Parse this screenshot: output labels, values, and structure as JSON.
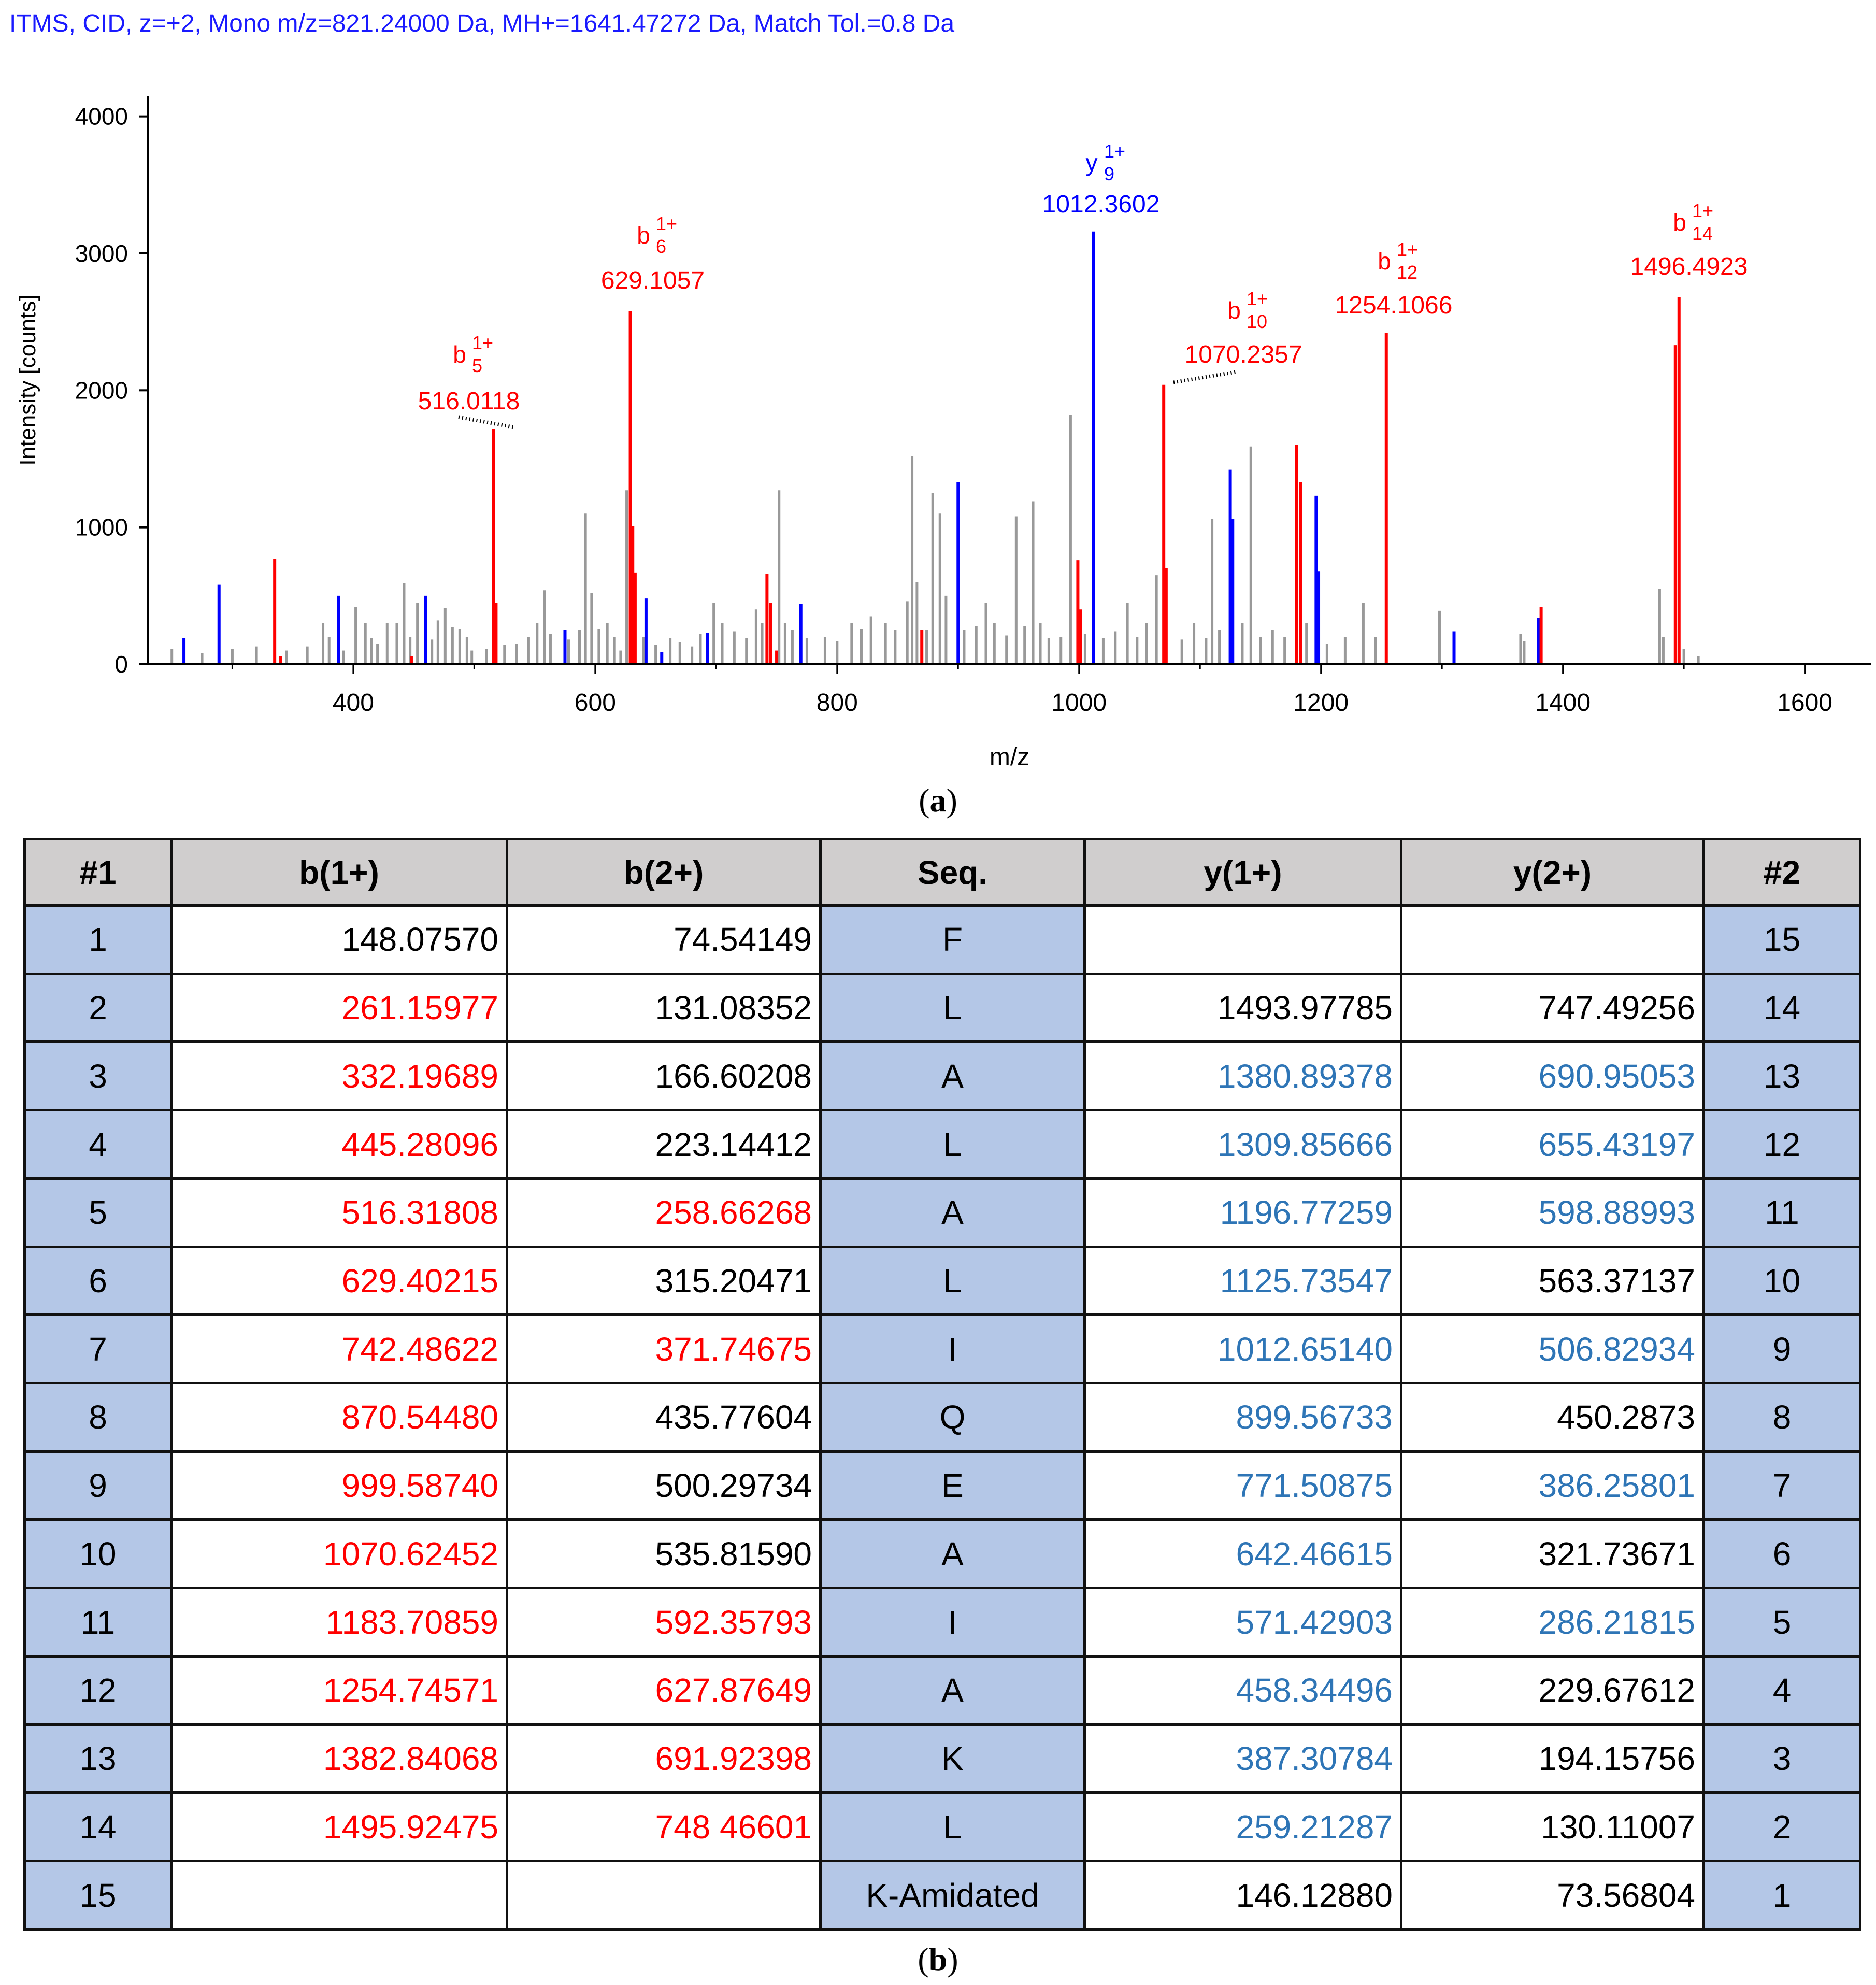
{
  "header": "ITMS, CID, z=+2, Mono m/z=821.24000 Da, MH+=1641.47272 Da, Match Tol.=0.8 Da",
  "chart_data": {
    "type": "bar",
    "title": "ITMS, CID, z=+2, Mono m/z=821.24000 Da, MH+=1641.47272 Da, Match Tol.=0.8 Da",
    "xlabel": "m/z",
    "ylabel": "Intensity [counts]",
    "xlim": [
      230,
      1655
    ],
    "ylim": [
      0,
      4150
    ],
    "xticks": [
      400,
      600,
      800,
      1000,
      1200,
      1400,
      1600
    ],
    "yticks": [
      0,
      1000,
      2000,
      3000,
      4000
    ],
    "colors": {
      "b": "#ff0000",
      "y": "#0000ff",
      "other": "#999999"
    },
    "annotations": [
      {
        "ion": "b",
        "sub": "5",
        "sup": "1+",
        "mz": "516.0118",
        "color": "#ff0000"
      },
      {
        "ion": "b",
        "sub": "6",
        "sup": "1+",
        "mz": "629.1057",
        "color": "#ff0000"
      },
      {
        "ion": "y",
        "sub": "9",
        "sup": "1+",
        "mz": "1012.3602",
        "color": "#0000ff"
      },
      {
        "ion": "b",
        "sub": "10",
        "sup": "1+",
        "mz": "1070.2357",
        "color": "#ff0000"
      },
      {
        "ion": "b",
        "sub": "12",
        "sup": "1+",
        "mz": "1254.1066",
        "color": "#ff0000"
      },
      {
        "ion": "b",
        "sub": "14",
        "sup": "1+",
        "mz": "1496.4923",
        "color": "#ff0000"
      }
    ],
    "peaks_b": [
      [
        335,
        770
      ],
      [
        340,
        60
      ],
      [
        448,
        60
      ],
      [
        516,
        1720
      ],
      [
        518,
        450
      ],
      [
        629,
        2580
      ],
      [
        631,
        1010
      ],
      [
        633,
        670
      ],
      [
        742,
        660
      ],
      [
        745,
        450
      ],
      [
        750,
        100
      ],
      [
        870,
        250
      ],
      [
        999,
        760
      ],
      [
        1001,
        400
      ],
      [
        1070,
        2040
      ],
      [
        1072,
        700
      ],
      [
        1180,
        1600
      ],
      [
        1183,
        1330
      ],
      [
        1254,
        2420
      ],
      [
        1382,
        420
      ],
      [
        1493,
        2330
      ],
      [
        1496,
        2680
      ]
    ],
    "peaks_y": [
      [
        260,
        190
      ],
      [
        289,
        580
      ],
      [
        388,
        500
      ],
      [
        460,
        500
      ],
      [
        575,
        250
      ],
      [
        642,
        480
      ],
      [
        655,
        90
      ],
      [
        693,
        230
      ],
      [
        770,
        440
      ],
      [
        900,
        1330
      ],
      [
        1012,
        3160
      ],
      [
        1125,
        1420
      ],
      [
        1127,
        1060
      ],
      [
        1196,
        1230
      ],
      [
        1198,
        680
      ],
      [
        1310,
        240
      ],
      [
        1380,
        340
      ]
    ],
    "peaks_other": [
      [
        250,
        110
      ],
      [
        260,
        90
      ],
      [
        275,
        80
      ],
      [
        300,
        110
      ],
      [
        320,
        130
      ],
      [
        345,
        100
      ],
      [
        362,
        130
      ],
      [
        375,
        300
      ],
      [
        380,
        200
      ],
      [
        392,
        100
      ],
      [
        402,
        420
      ],
      [
        410,
        300
      ],
      [
        415,
        190
      ],
      [
        420,
        150
      ],
      [
        428,
        300
      ],
      [
        436,
        300
      ],
      [
        442,
        590
      ],
      [
        447,
        200
      ],
      [
        453,
        450
      ],
      [
        465,
        180
      ],
      [
        470,
        320
      ],
      [
        476,
        410
      ],
      [
        482,
        270
      ],
      [
        488,
        260
      ],
      [
        494,
        200
      ],
      [
        498,
        100
      ],
      [
        510,
        110
      ],
      [
        525,
        140
      ],
      [
        535,
        150
      ],
      [
        545,
        200
      ],
      [
        552,
        300
      ],
      [
        558,
        540
      ],
      [
        563,
        220
      ],
      [
        578,
        180
      ],
      [
        587,
        250
      ],
      [
        592,
        1100
      ],
      [
        597,
        520
      ],
      [
        603,
        260
      ],
      [
        610,
        300
      ],
      [
        616,
        200
      ],
      [
        621,
        100
      ],
      [
        626,
        1270
      ],
      [
        640,
        200
      ],
      [
        650,
        140
      ],
      [
        662,
        190
      ],
      [
        670,
        160
      ],
      [
        680,
        130
      ],
      [
        687,
        220
      ],
      [
        698,
        450
      ],
      [
        705,
        300
      ],
      [
        715,
        240
      ],
      [
        725,
        190
      ],
      [
        733,
        400
      ],
      [
        738,
        300
      ],
      [
        752,
        1270
      ],
      [
        757,
        300
      ],
      [
        763,
        250
      ],
      [
        775,
        190
      ],
      [
        790,
        200
      ],
      [
        800,
        170
      ],
      [
        812,
        300
      ],
      [
        820,
        260
      ],
      [
        828,
        350
      ],
      [
        840,
        300
      ],
      [
        848,
        250
      ],
      [
        858,
        460
      ],
      [
        862,
        1520
      ],
      [
        866,
        600
      ],
      [
        874,
        250
      ],
      [
        879,
        1250
      ],
      [
        885,
        1100
      ],
      [
        890,
        500
      ],
      [
        905,
        250
      ],
      [
        915,
        280
      ],
      [
        923,
        450
      ],
      [
        930,
        300
      ],
      [
        940,
        210
      ],
      [
        948,
        1080
      ],
      [
        955,
        280
      ],
      [
        962,
        1190
      ],
      [
        968,
        300
      ],
      [
        975,
        190
      ],
      [
        985,
        200
      ],
      [
        993,
        1820
      ],
      [
        1005,
        220
      ],
      [
        1020,
        190
      ],
      [
        1030,
        240
      ],
      [
        1040,
        450
      ],
      [
        1048,
        200
      ],
      [
        1056,
        300
      ],
      [
        1064,
        650
      ],
      [
        1085,
        180
      ],
      [
        1095,
        300
      ],
      [
        1105,
        190
      ],
      [
        1110,
        1060
      ],
      [
        1116,
        250
      ],
      [
        1135,
        300
      ],
      [
        1142,
        1590
      ],
      [
        1150,
        200
      ],
      [
        1160,
        250
      ],
      [
        1170,
        200
      ],
      [
        1188,
        300
      ],
      [
        1205,
        150
      ],
      [
        1220,
        200
      ],
      [
        1235,
        450
      ],
      [
        1245,
        200
      ],
      [
        1298,
        390
      ],
      [
        1365,
        220
      ],
      [
        1368,
        170
      ],
      [
        1480,
        550
      ],
      [
        1483,
        200
      ],
      [
        1500,
        110
      ],
      [
        1512,
        60
      ]
    ]
  },
  "captions": {
    "a": "a",
    "b": "b"
  },
  "table": {
    "headers": [
      "#1",
      "b(1+)",
      "b(2+)",
      "Seq.",
      "y(1+)",
      "y(2+)",
      "#2"
    ],
    "rows": [
      {
        "n1": "1",
        "b1": {
          "v": "148.07570",
          "c": "black"
        },
        "b2": {
          "v": "74.54149",
          "c": "black"
        },
        "seq": "F",
        "y1": {
          "v": "",
          "c": "black"
        },
        "y2": {
          "v": "",
          "c": "black"
        },
        "n2": "15"
      },
      {
        "n1": "2",
        "b1": {
          "v": "261.15977",
          "c": "red"
        },
        "b2": {
          "v": "131.08352",
          "c": "black"
        },
        "seq": "L",
        "y1": {
          "v": "1493.97785",
          "c": "black"
        },
        "y2": {
          "v": "747.49256",
          "c": "black"
        },
        "n2": "14"
      },
      {
        "n1": "3",
        "b1": {
          "v": "332.19689",
          "c": "red"
        },
        "b2": {
          "v": "166.60208",
          "c": "black"
        },
        "seq": "A",
        "y1": {
          "v": "1380.89378",
          "c": "blue"
        },
        "y2": {
          "v": "690.95053",
          "c": "blue"
        },
        "n2": "13"
      },
      {
        "n1": "4",
        "b1": {
          "v": "445.28096",
          "c": "red"
        },
        "b2": {
          "v": "223.14412",
          "c": "black"
        },
        "seq": "L",
        "y1": {
          "v": "1309.85666",
          "c": "blue"
        },
        "y2": {
          "v": "655.43197",
          "c": "blue"
        },
        "n2": "12"
      },
      {
        "n1": "5",
        "b1": {
          "v": "516.31808",
          "c": "red"
        },
        "b2": {
          "v": "258.66268",
          "c": "red"
        },
        "seq": "A",
        "y1": {
          "v": "1196.77259",
          "c": "blue"
        },
        "y2": {
          "v": "598.88993",
          "c": "blue"
        },
        "n2": "11"
      },
      {
        "n1": "6",
        "b1": {
          "v": "629.40215",
          "c": "red"
        },
        "b2": {
          "v": "315.20471",
          "c": "black"
        },
        "seq": "L",
        "y1": {
          "v": "1125.73547",
          "c": "blue"
        },
        "y2": {
          "v": "563.37137",
          "c": "black"
        },
        "n2": "10"
      },
      {
        "n1": "7",
        "b1": {
          "v": "742.48622",
          "c": "red"
        },
        "b2": {
          "v": "371.74675",
          "c": "red"
        },
        "seq": "I",
        "y1": {
          "v": "1012.65140",
          "c": "blue"
        },
        "y2": {
          "v": "506.82934",
          "c": "blue"
        },
        "n2": "9"
      },
      {
        "n1": "8",
        "b1": {
          "v": "870.54480",
          "c": "red"
        },
        "b2": {
          "v": "435.77604",
          "c": "black"
        },
        "seq": "Q",
        "y1": {
          "v": "899.56733",
          "c": "blue"
        },
        "y2": {
          "v": "450.2873",
          "c": "black"
        },
        "n2": "8"
      },
      {
        "n1": "9",
        "b1": {
          "v": "999.58740",
          "c": "red"
        },
        "b2": {
          "v": "500.29734",
          "c": "black"
        },
        "seq": "E",
        "y1": {
          "v": "771.50875",
          "c": "blue"
        },
        "y2": {
          "v": "386.25801",
          "c": "blue"
        },
        "n2": "7"
      },
      {
        "n1": "10",
        "b1": {
          "v": "1070.62452",
          "c": "red"
        },
        "b2": {
          "v": "535.81590",
          "c": "black"
        },
        "seq": "A",
        "y1": {
          "v": "642.46615",
          "c": "blue"
        },
        "y2": {
          "v": "321.73671",
          "c": "black"
        },
        "n2": "6"
      },
      {
        "n1": "11",
        "b1": {
          "v": "1183.70859",
          "c": "red"
        },
        "b2": {
          "v": "592.35793",
          "c": "red"
        },
        "seq": "I",
        "y1": {
          "v": "571.42903",
          "c": "blue"
        },
        "y2": {
          "v": "286.21815",
          "c": "blue"
        },
        "n2": "5"
      },
      {
        "n1": "12",
        "b1": {
          "v": "1254.74571",
          "c": "red"
        },
        "b2": {
          "v": "627.87649",
          "c": "red"
        },
        "seq": "A",
        "y1": {
          "v": "458.34496",
          "c": "blue"
        },
        "y2": {
          "v": "229.67612",
          "c": "black"
        },
        "n2": "4"
      },
      {
        "n1": "13",
        "b1": {
          "v": "1382.84068",
          "c": "red"
        },
        "b2": {
          "v": "691.92398",
          "c": "red"
        },
        "seq": "K",
        "y1": {
          "v": "387.30784",
          "c": "blue"
        },
        "y2": {
          "v": "194.15756",
          "c": "black"
        },
        "n2": "3"
      },
      {
        "n1": "14",
        "b1": {
          "v": "1495.92475",
          "c": "red"
        },
        "b2": {
          "v": "748 46601",
          "c": "red"
        },
        "seq": "L",
        "y1": {
          "v": "259.21287",
          "c": "blue"
        },
        "y2": {
          "v": "130.11007",
          "c": "black"
        },
        "n2": "2"
      },
      {
        "n1": "15",
        "b1": {
          "v": "",
          "c": "black"
        },
        "b2": {
          "v": "",
          "c": "black"
        },
        "seq": "K-Amidated",
        "y1": {
          "v": "146.12880",
          "c": "black"
        },
        "y2": {
          "v": "73.56804",
          "c": "black"
        },
        "n2": "1"
      }
    ]
  }
}
